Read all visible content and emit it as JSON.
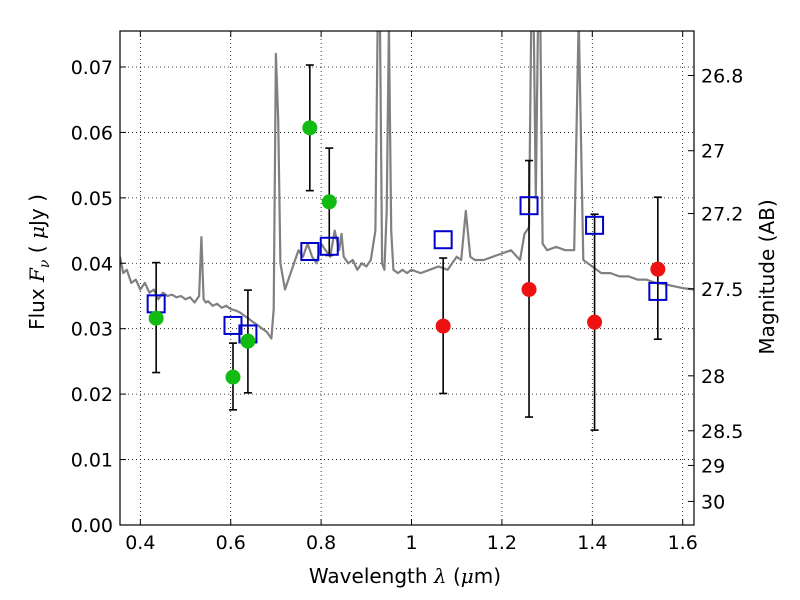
{
  "chart_data": {
    "type": "scatter",
    "xlabel": "Wavelength  λ (μm)",
    "ylabel_left": "Flux  Fν (  μJy )",
    "ylabel_right": "Magnitude (AB)",
    "xlim": [
      0.355,
      1.625
    ],
    "ylim": [
      0.0,
      0.0755
    ],
    "grid": true,
    "x_ticks": [
      0.4,
      0.6,
      0.8,
      1.0,
      1.2,
      1.4,
      1.6
    ],
    "x_tick_labels": [
      "0.4",
      "0.6",
      "0.8",
      "1",
      "1.2",
      "1.4",
      "1.6"
    ],
    "y_ticks": [
      0.0,
      0.01,
      0.02,
      0.03,
      0.04,
      0.05,
      0.06,
      0.07
    ],
    "y_tick_labels": [
      "0.00",
      "0.01",
      "0.02",
      "0.03",
      "0.04",
      "0.05",
      "0.06",
      "0.07"
    ],
    "right_ticks": [
      {
        "label": "26.8",
        "flux": 0.0687
      },
      {
        "label": "27",
        "flux": 0.0572
      },
      {
        "label": "27.2",
        "flux": 0.0476
      },
      {
        "label": "27.5",
        "flux": 0.0361
      },
      {
        "label": "28",
        "flux": 0.0228
      },
      {
        "label": "28.5",
        "flux": 0.0144
      },
      {
        "label": "29",
        "flux": 0.0091
      },
      {
        "label": "30",
        "flux": 0.0036
      }
    ],
    "series": [
      {
        "kind": "spectrum",
        "color": "#808080",
        "x": [
          0.355,
          0.362,
          0.37,
          0.38,
          0.39,
          0.4,
          0.41,
          0.42,
          0.43,
          0.44,
          0.45,
          0.46,
          0.47,
          0.48,
          0.49,
          0.5,
          0.51,
          0.52,
          0.53,
          0.535,
          0.54,
          0.545,
          0.55,
          0.56,
          0.57,
          0.58,
          0.59,
          0.6,
          0.61,
          0.62,
          0.63,
          0.64,
          0.65,
          0.66,
          0.67,
          0.68,
          0.69,
          0.695,
          0.7,
          0.705,
          0.71,
          0.72,
          0.73,
          0.74,
          0.75,
          0.76,
          0.77,
          0.78,
          0.79,
          0.8,
          0.81,
          0.82,
          0.83,
          0.84,
          0.845,
          0.85,
          0.86,
          0.87,
          0.88,
          0.89,
          0.9,
          0.91,
          0.92,
          0.925,
          0.93,
          0.935,
          0.94,
          0.945,
          0.95,
          0.955,
          0.96,
          0.97,
          0.98,
          0.99,
          1.0,
          1.02,
          1.04,
          1.06,
          1.08,
          1.1,
          1.11,
          1.12,
          1.13,
          1.14,
          1.16,
          1.18,
          1.2,
          1.22,
          1.24,
          1.25,
          1.26,
          1.265,
          1.27,
          1.275,
          1.28,
          1.285,
          1.29,
          1.3,
          1.32,
          1.34,
          1.36,
          1.37,
          1.38,
          1.39,
          1.4,
          1.42,
          1.44,
          1.46,
          1.48,
          1.5,
          1.52,
          1.54,
          1.56,
          1.58,
          1.6,
          1.625
        ],
        "y": [
          0.041,
          0.0385,
          0.039,
          0.037,
          0.0375,
          0.036,
          0.037,
          0.0355,
          0.036,
          0.0345,
          0.0355,
          0.035,
          0.0352,
          0.0348,
          0.035,
          0.0345,
          0.0348,
          0.034,
          0.035,
          0.044,
          0.0345,
          0.034,
          0.0342,
          0.0335,
          0.0338,
          0.0332,
          0.0335,
          0.033,
          0.0328,
          0.0325,
          0.032,
          0.0315,
          0.031,
          0.0305,
          0.03,
          0.0295,
          0.0285,
          0.033,
          0.072,
          0.062,
          0.04,
          0.036,
          0.038,
          0.04,
          0.042,
          0.041,
          0.043,
          0.041,
          0.04,
          0.043,
          0.042,
          0.041,
          0.045,
          0.042,
          0.0445,
          0.041,
          0.04,
          0.0405,
          0.039,
          0.04,
          0.0395,
          0.0405,
          0.045,
          0.076,
          0.078,
          0.04,
          0.039,
          0.048,
          0.0765,
          0.045,
          0.039,
          0.0385,
          0.039,
          0.0385,
          0.039,
          0.0385,
          0.039,
          0.0395,
          0.039,
          0.041,
          0.0405,
          0.048,
          0.041,
          0.0405,
          0.0405,
          0.041,
          0.0415,
          0.042,
          0.0405,
          0.0445,
          0.0455,
          0.078,
          0.0785,
          0.05,
          0.078,
          0.0775,
          0.043,
          0.042,
          0.0425,
          0.042,
          0.042,
          0.0775,
          0.0405,
          0.04,
          0.0395,
          0.0385,
          0.0385,
          0.038,
          0.038,
          0.0375,
          0.0375,
          0.037,
          0.0368,
          0.0365,
          0.0362,
          0.036
        ]
      },
      {
        "kind": "points",
        "marker": "open-square",
        "color": "#0000cc",
        "x": [
          0.435,
          0.605,
          0.638,
          0.775,
          0.818,
          1.07,
          1.26,
          1.405,
          1.545
        ],
        "y": [
          0.0338,
          0.0305,
          0.0292,
          0.0418,
          0.0426,
          0.0436,
          0.0488,
          0.0458,
          0.0357
        ]
      },
      {
        "kind": "points",
        "marker": "filled-circle",
        "color": "#11bb11",
        "x": [
          0.435,
          0.605,
          0.638,
          0.775,
          0.818
        ],
        "y": [
          0.0316,
          0.0226,
          0.0281,
          0.0607,
          0.0494
        ],
        "yerr_low": [
          0.0233,
          0.0176,
          0.0202,
          0.0511,
          0.0412
        ],
        "yerr_high": [
          0.0401,
          0.0278,
          0.0359,
          0.0703,
          0.0576
        ]
      },
      {
        "kind": "points",
        "marker": "filled-circle",
        "color": "#ee1111",
        "x": [
          1.07,
          1.26,
          1.405,
          1.545
        ],
        "y": [
          0.0304,
          0.036,
          0.031,
          0.0391
        ],
        "yerr_low": [
          0.0201,
          0.0165,
          0.0145,
          0.0284
        ],
        "yerr_high": [
          0.0408,
          0.0557,
          0.0475,
          0.0501
        ]
      }
    ]
  }
}
